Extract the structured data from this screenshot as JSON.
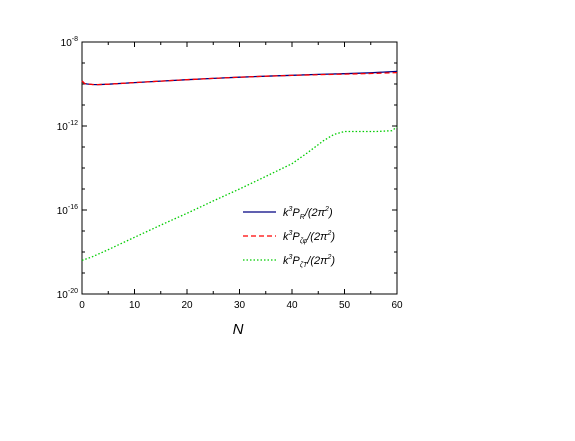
{
  "chart_data": {
    "type": "line",
    "title": "",
    "xlabel": "N",
    "ylabel": "",
    "xlim": [
      0,
      60
    ],
    "ylim": [
      1e-20,
      1e-08
    ],
    "yscale": "log",
    "grid": false,
    "legend_position": "center-right",
    "x_ticks": [
      "0",
      "10",
      "20",
      "30",
      "40",
      "50",
      "60"
    ],
    "y_ticks": [
      {
        "mantissa": "10",
        "exp": "-8",
        "value": 1e-08
      },
      {
        "mantissa": "10",
        "exp": "-12",
        "value": 1e-12
      },
      {
        "mantissa": "10",
        "exp": "-16",
        "value": 1e-16
      },
      {
        "mantissa": "10",
        "exp": "-20",
        "value": 1e-20
      }
    ],
    "series": [
      {
        "name_base": "k",
        "name_sup1": "3",
        "name_mid": "P",
        "name_sub": "R",
        "name_tail": "/(2π",
        "name_sup2": "2",
        "name_end": ")",
        "color": "#000080",
        "dash": "solid",
        "x": [
          0,
          0.5,
          1,
          2,
          3,
          5,
          10,
          15,
          20,
          25,
          30,
          35,
          40,
          45,
          50,
          55,
          60
        ],
        "y": [
          1.4e-10,
          1.05e-10,
          1e-10,
          9.5e-11,
          9.4e-11,
          9.8e-11,
          1.16e-10,
          1.37e-10,
          1.6e-10,
          1.85e-10,
          2.1e-10,
          2.35e-10,
          2.6e-10,
          2.85e-10,
          3.1e-10,
          3.4e-10,
          4e-10
        ]
      },
      {
        "name_base": "k",
        "name_sup1": "3",
        "name_mid": "P",
        "name_sub": "ζφ",
        "name_tail": "/(2π",
        "name_sup2": "2",
        "name_end": ")",
        "color": "#ff0000",
        "dash": "dashed",
        "x": [
          0,
          0.5,
          1,
          2,
          3,
          5,
          10,
          15,
          20,
          25,
          30,
          35,
          40,
          45,
          50,
          55,
          60
        ],
        "y": [
          1.4e-10,
          1.05e-10,
          1e-10,
          9.5e-11,
          9.4e-11,
          9.8e-11,
          1.16e-10,
          1.37e-10,
          1.6e-10,
          1.85e-10,
          2.1e-10,
          2.35e-10,
          2.58e-10,
          2.78e-10,
          2.95e-10,
          3.15e-10,
          3.5e-10
        ]
      },
      {
        "name_base": "k",
        "name_sup1": "3",
        "name_mid": "P",
        "name_sub": "ζT",
        "name_tail": "/(2π",
        "name_sup2": "2",
        "name_end": ")",
        "color": "#00cc00",
        "dash": "dotted",
        "x": [
          0,
          2,
          5,
          10,
          15,
          20,
          25,
          30,
          35,
          40,
          43,
          46,
          48,
          50,
          53,
          56,
          59,
          60
        ],
        "y": [
          4e-19,
          6e-19,
          1.3e-18,
          5e-18,
          1.9e-17,
          7e-17,
          2.7e-16,
          1e-15,
          4e-15,
          1.6e-14,
          5.5e-14,
          2e-13,
          4e-13,
          5.5e-13,
          5.5e-13,
          5.5e-13,
          6e-13,
          9e-13
        ]
      }
    ]
  }
}
